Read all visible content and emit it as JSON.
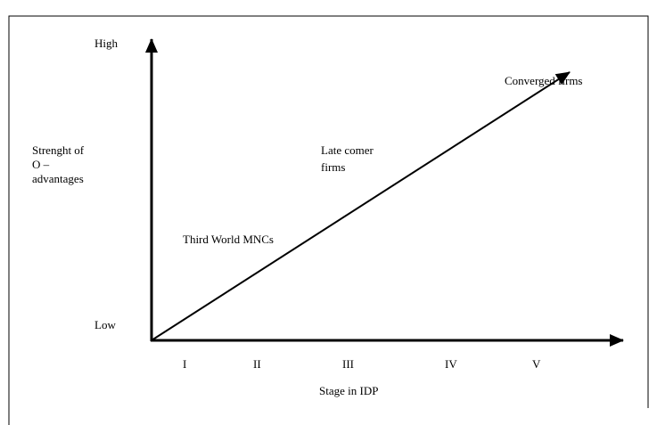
{
  "y_axis": {
    "high": "High",
    "low": "Low",
    "label": [
      "Strenght of",
      "O –",
      "advantages"
    ]
  },
  "x_axis": {
    "stages": [
      "I",
      "II",
      "III",
      "IV",
      "V"
    ],
    "label": "Stage in IDP"
  },
  "annotations": {
    "converged": "Converged firms",
    "late_comer": [
      "Late comer",
      "firms"
    ],
    "third_world": "Third World MNCs"
  }
}
